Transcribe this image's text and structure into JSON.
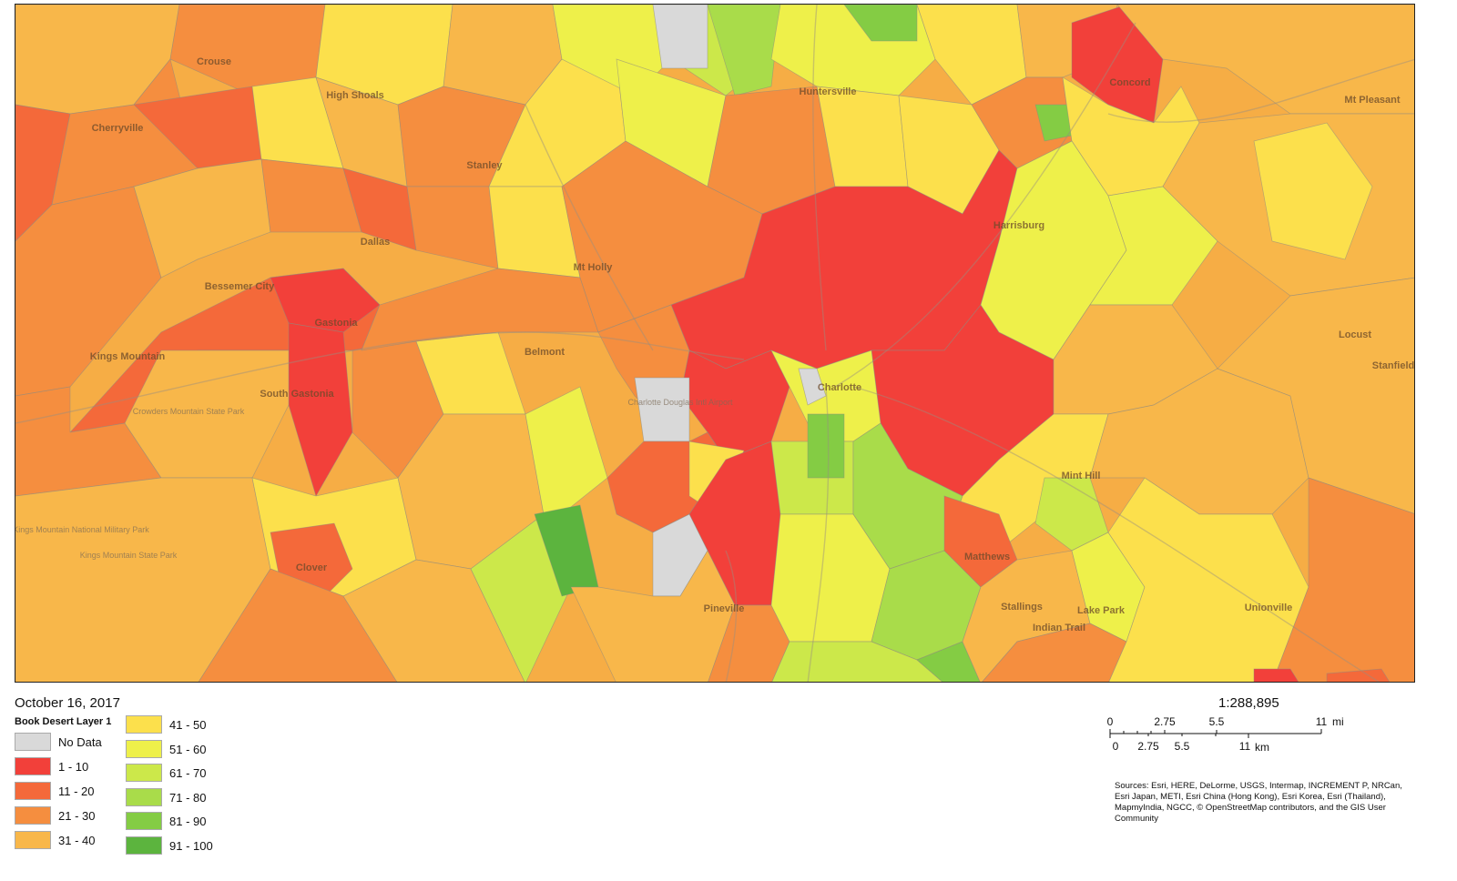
{
  "map": {
    "date": "October 16, 2017",
    "scale_ratio": "1:288,895",
    "legend": {
      "title": "Book Desert Layer 1",
      "items": [
        {
          "label": "No Data",
          "color": "#d9d9d9"
        },
        {
          "label": "1 - 10",
          "color": "#f2403a"
        },
        {
          "label": "11 - 20",
          "color": "#f4693a"
        },
        {
          "label": "21 - 30",
          "color": "#f58e3f"
        },
        {
          "label": "31 - 40",
          "color": "#f8b74a"
        },
        {
          "label": "41 - 50",
          "color": "#fce04c"
        },
        {
          "label": "51 - 60",
          "color": "#eef04a"
        },
        {
          "label": "61 - 70",
          "color": "#cce84a"
        },
        {
          "label": "71 - 80",
          "color": "#a9dc4a"
        },
        {
          "label": "81 - 90",
          "color": "#84cc44"
        },
        {
          "label": "91 - 100",
          "color": "#5cb43e"
        }
      ]
    },
    "scale": {
      "mi_labels": [
        "0",
        "2.75",
        "5.5",
        "11"
      ],
      "mi_unit": "mi",
      "km_labels": [
        "0",
        "2.75",
        "5.5",
        "11"
      ],
      "km_unit": "km"
    },
    "sources": "Sources: Esri, HERE, DeLorme, USGS, Intermap, INCREMENT P, NRCan, Esri Japan, METI, Esri China (Hong Kong), Esri Korea, Esri (Thailand), MapmyIndia, NGCC, © OpenStreetMap contributors, and the GIS User Community",
    "places": [
      "Crouse",
      "High Shoals",
      "Cherryville",
      "Stanley",
      "Huntersville",
      "Concord",
      "Mt Pleasant",
      "Dallas",
      "Mt Holly",
      "Harrisburg",
      "Bessemer City",
      "Gastonia",
      "Kings Mountain",
      "Belmont",
      "Charlotte",
      "Locust",
      "Stanfield",
      "South Gastonia",
      "Charlotte Douglas Intl Airport",
      "Mint Hill",
      "Clover",
      "Pineville",
      "Matthews",
      "Stallings",
      "Indian Trail",
      "Lake Park",
      "Unionville",
      "Crowders Mountain State Park",
      "Kings Mountain National Military Park",
      "Kings Mountain State Park"
    ]
  }
}
